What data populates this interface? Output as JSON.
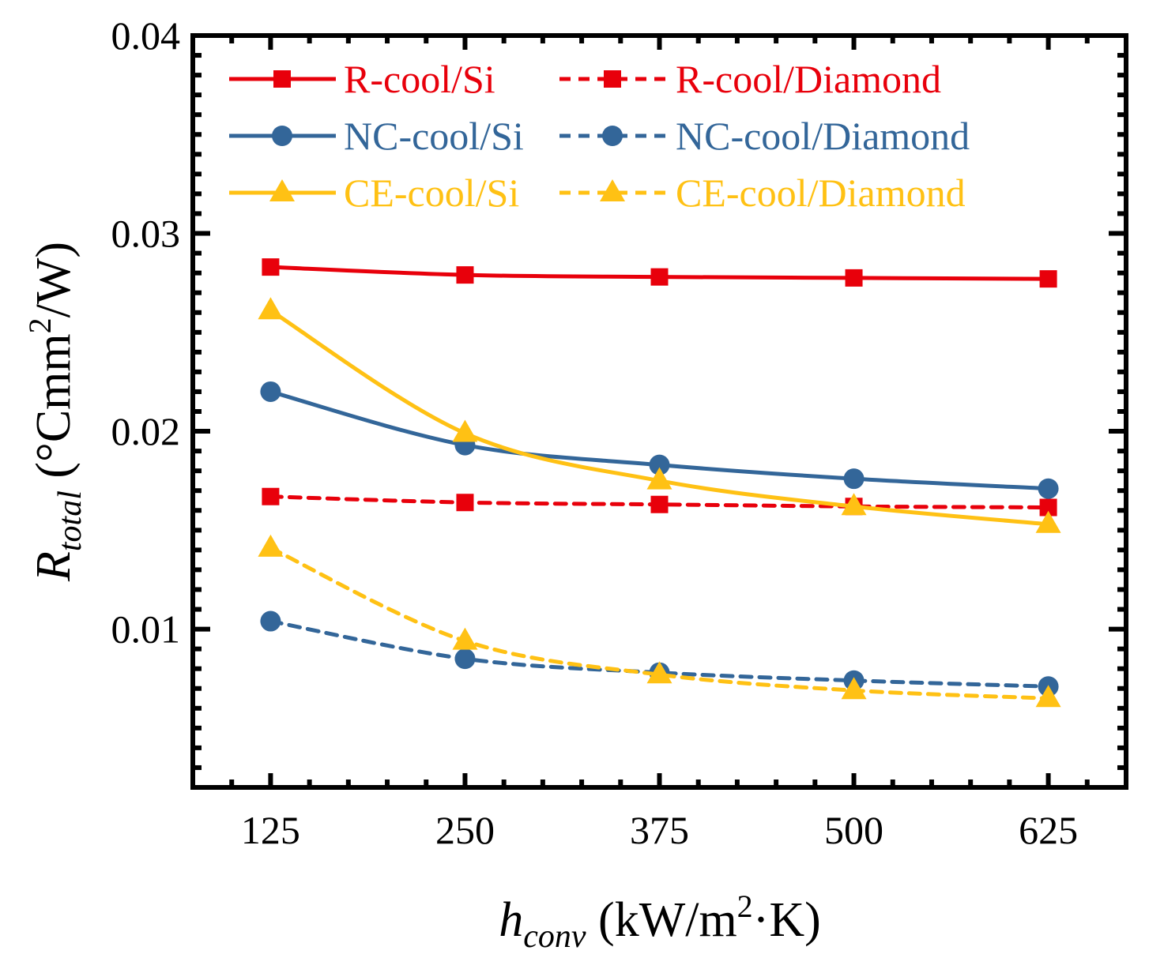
{
  "chart_data": {
    "type": "line",
    "title": "",
    "xlabel": {
      "main": "h",
      "sub": "conv",
      "unit_pre": " (kW/m",
      "sup": "2",
      "unit_post": "·K)"
    },
    "ylabel": {
      "main": "R",
      "sub": "total",
      "unit_pre": " (°Cmm",
      "sup": "2",
      "unit_post": "/W)"
    },
    "x": [
      125,
      250,
      375,
      500,
      625
    ],
    "xlim": [
      75,
      675
    ],
    "ylim": [
      0.002,
      0.04
    ],
    "xticks": [
      "125",
      "250",
      "375",
      "500",
      "625"
    ],
    "yticks": [
      {
        "v": 0.01,
        "label": "0.01"
      },
      {
        "v": 0.02,
        "label": "0.02"
      },
      {
        "v": 0.03,
        "label": "0.03"
      },
      {
        "v": 0.04,
        "label": "0.04"
      }
    ],
    "grid": false,
    "legend_position": "top",
    "series": [
      {
        "name": "R-cool/Si",
        "color": "#e8000b",
        "dash": false,
        "marker": "square",
        "values": [
          0.0283,
          0.0279,
          0.0278,
          0.02775,
          0.0277
        ]
      },
      {
        "name": "R-cool/Diamond",
        "color": "#e8000b",
        "dash": true,
        "marker": "square",
        "values": [
          0.0167,
          0.0164,
          0.0163,
          0.0162,
          0.01615
        ]
      },
      {
        "name": "NC-cool/Si",
        "color": "#336699",
        "dash": false,
        "marker": "circle",
        "values": [
          0.022,
          0.0193,
          0.0183,
          0.0176,
          0.0171
        ]
      },
      {
        "name": "NC-cool/Diamond",
        "color": "#336699",
        "dash": true,
        "marker": "circle",
        "values": [
          0.0104,
          0.0085,
          0.0078,
          0.0074,
          0.0071
        ]
      },
      {
        "name": "CE-cool/Si",
        "color": "#ffc114",
        "dash": false,
        "marker": "triangle",
        "values": [
          0.0261,
          0.0199,
          0.0175,
          0.0162,
          0.0153
        ]
      },
      {
        "name": "CE-cool/Diamond",
        "color": "#ffc114",
        "dash": true,
        "marker": "triangle",
        "values": [
          0.0141,
          0.0094,
          0.0077,
          0.0069,
          0.0065
        ]
      }
    ]
  }
}
